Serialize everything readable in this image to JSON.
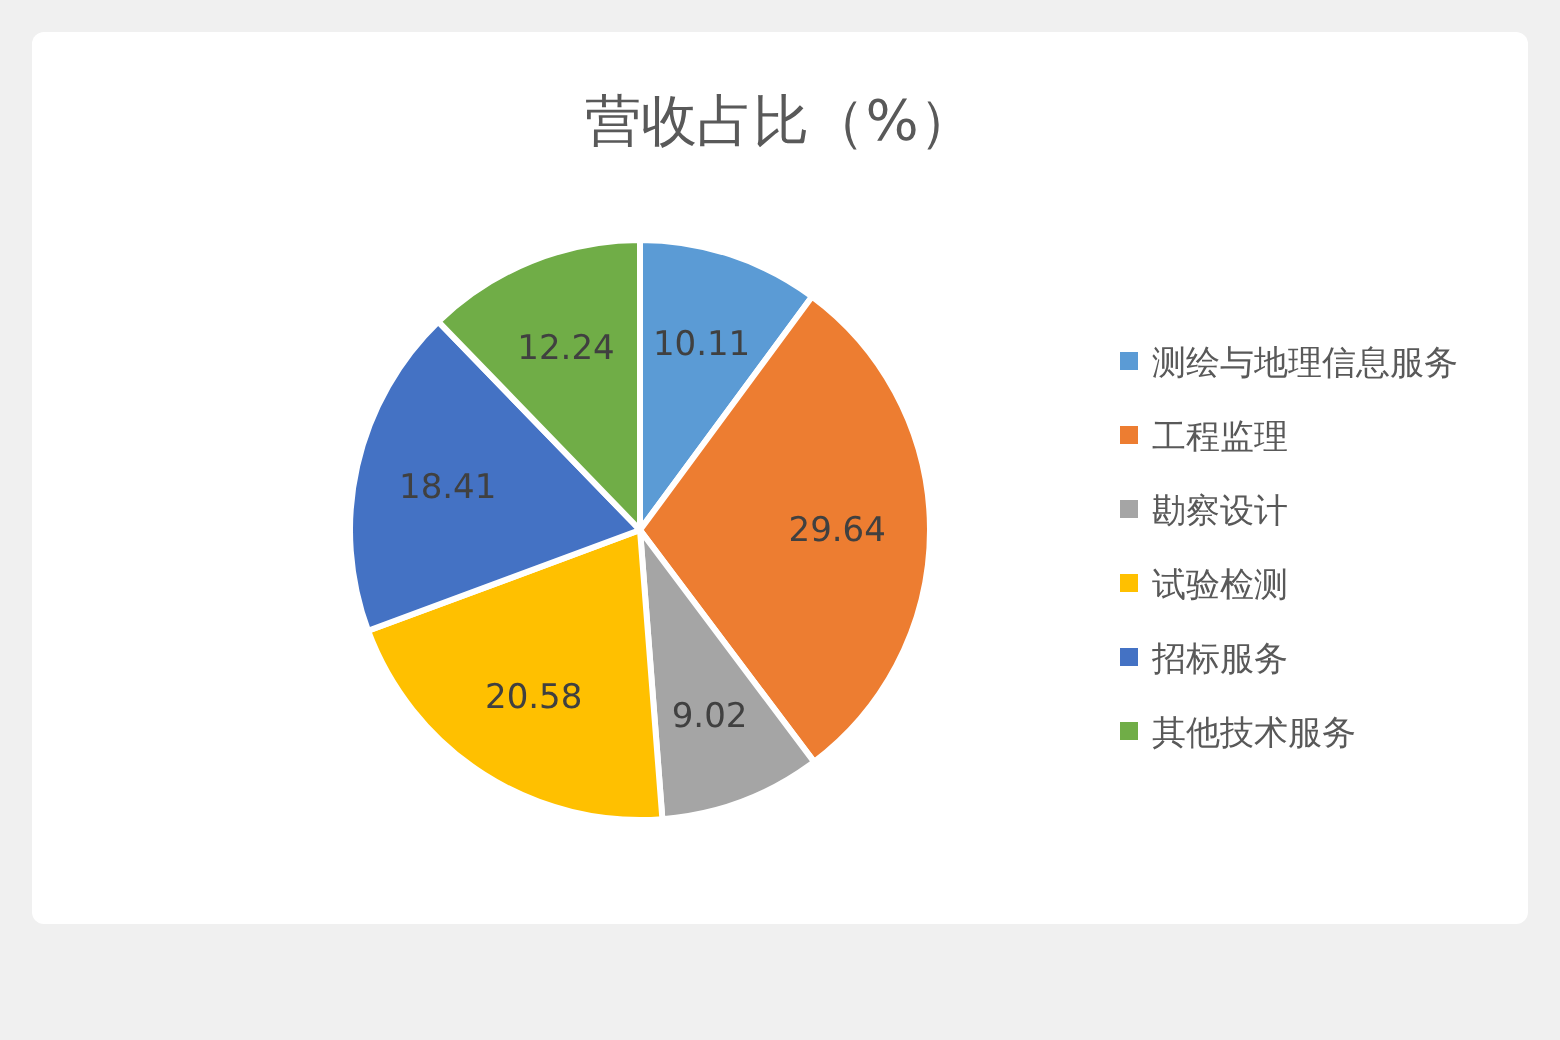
{
  "chart_data": {
    "type": "pie",
    "title": "营收占比（%）",
    "categories": [
      "测绘与地理信息服务",
      "工程监理",
      "勘察设计",
      "试验检测",
      "招标服务",
      "其他技术服务"
    ],
    "values": [
      10.11,
      29.64,
      9.02,
      20.58,
      18.41,
      12.24
    ],
    "colors": [
      "#5b9bd5",
      "#ed7d31",
      "#a5a5a5",
      "#ffc000",
      "#4472c4",
      "#70ad47"
    ],
    "data_labels": true,
    "legend": "right"
  }
}
